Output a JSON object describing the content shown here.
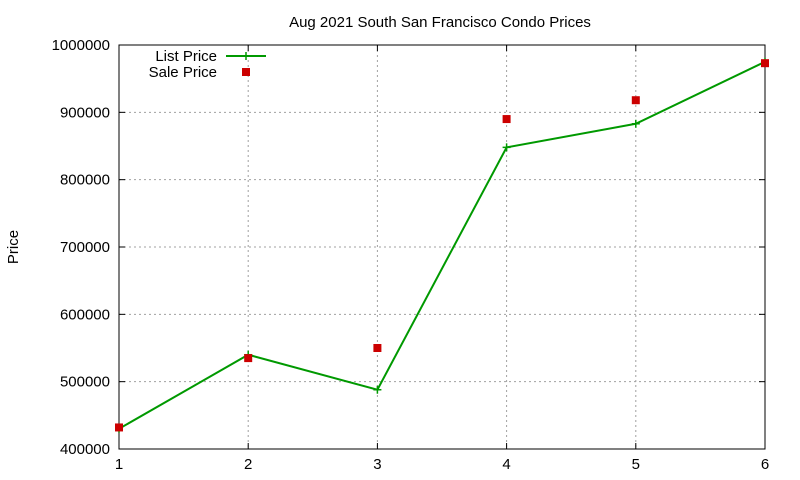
{
  "chart_data": {
    "type": "line",
    "title": "Aug 2021 South San Francisco Condo Prices",
    "xlabel": "",
    "ylabel": "Price",
    "xlim": [
      1,
      6
    ],
    "ylim": [
      400000,
      1000000
    ],
    "xticks": [
      1,
      2,
      3,
      4,
      5,
      6
    ],
    "yticks": [
      400000,
      500000,
      600000,
      700000,
      800000,
      900000,
      1000000
    ],
    "grid": true,
    "legend_position": "top-left",
    "series": [
      {
        "name": "List Price",
        "style": "linespoints",
        "marker": "plus",
        "color": "#009900",
        "x": [
          1,
          2,
          3,
          4,
          5,
          6
        ],
        "values": [
          430000,
          540000,
          488000,
          848000,
          883000,
          975000
        ]
      },
      {
        "name": "Sale Price",
        "style": "points",
        "marker": "square",
        "color": "#cc0000",
        "x": [
          1,
          2,
          3,
          4,
          5,
          6
        ],
        "values": [
          432000,
          535000,
          550000,
          890000,
          918000,
          973000
        ]
      }
    ]
  }
}
